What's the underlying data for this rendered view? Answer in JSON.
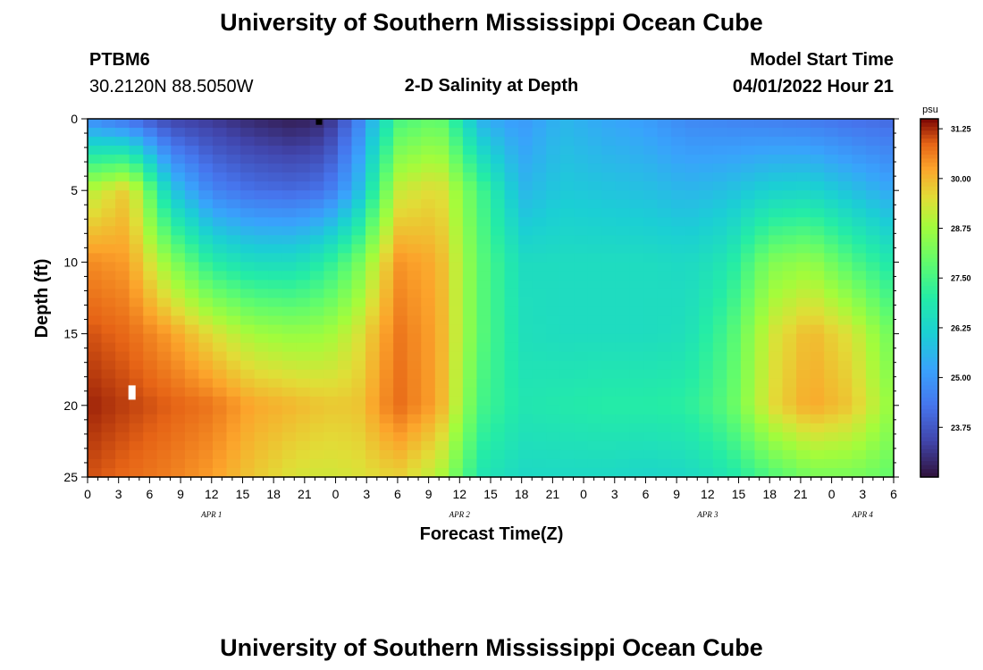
{
  "header": {
    "title": "University of Southern Mississippi Ocean Cube",
    "station_id": "PTBM6",
    "station_coords": "30.2120N  88.5050W",
    "subtitle": "2-D Salinity at Depth",
    "model_start_label": "Model Start Time",
    "model_start_value": "04/01/2022 Hour 21"
  },
  "footer": {
    "title": "University of Southern Mississippi Ocean Cube"
  },
  "chart_data": {
    "type": "heatmap",
    "title": "2-D Salinity at Depth",
    "xlabel": "Forecast Time(Z)",
    "ylabel": "Depth (ft)",
    "ylim": [
      0,
      25
    ],
    "y_ticks": [
      "0",
      "5",
      "10",
      "15",
      "20",
      "25"
    ],
    "x_tick_labels": [
      "0",
      "3",
      "6",
      "9",
      "12",
      "15",
      "18",
      "21",
      "0",
      "3",
      "6",
      "9",
      "12",
      "15",
      "18",
      "21",
      "0",
      "3",
      "6",
      "9",
      "12",
      "15",
      "18",
      "21",
      "0",
      "3",
      "6"
    ],
    "x_range_hours": [
      0,
      78
    ],
    "day_labels": [
      {
        "label": "APR 1",
        "hour": 12
      },
      {
        "label": "APR 2",
        "hour": 36
      },
      {
        "label": "APR 3",
        "hour": 60
      },
      {
        "label": "APR 4",
        "hour": 75
      }
    ],
    "colorbar": {
      "unit": "psu",
      "min": 22.5,
      "max": 31.5,
      "ticks": [
        "31.25",
        "30.00",
        "28.75",
        "27.50",
        "26.25",
        "25.00",
        "23.75"
      ]
    },
    "grid": {
      "hours": [
        0,
        4,
        8,
        12,
        16,
        20,
        23,
        26,
        30,
        34,
        38,
        42,
        46,
        50,
        54,
        58,
        62,
        66,
        70,
        74,
        78
      ],
      "depths": [
        0,
        5,
        10,
        15,
        20,
        25
      ],
      "values": [
        [
          24.8,
          24.2,
          23.4,
          23.2,
          22.9,
          22.7,
          22.9,
          24.4,
          27.5,
          28.0,
          25.5,
          25.0,
          25.6,
          25.3,
          25.1,
          24.7,
          24.6,
          24.5,
          24.4,
          24.2,
          24.1
        ],
        [
          29.0,
          29.8,
          26.0,
          24.6,
          24.2,
          24.1,
          24.3,
          25.5,
          29.2,
          29.6,
          27.5,
          25.6,
          26.0,
          25.9,
          25.8,
          25.6,
          25.8,
          26.2,
          26.3,
          25.8,
          25.3
        ],
        [
          30.5,
          30.3,
          28.5,
          27.0,
          26.5,
          26.5,
          27.0,
          28.0,
          30.4,
          30.1,
          27.8,
          26.5,
          26.5,
          26.5,
          26.5,
          26.4,
          26.8,
          28.3,
          28.6,
          27.6,
          26.8
        ],
        [
          31.0,
          30.8,
          30.3,
          29.5,
          28.8,
          28.6,
          28.7,
          29.3,
          30.7,
          30.2,
          27.8,
          26.6,
          26.5,
          26.5,
          26.5,
          26.6,
          27.5,
          29.3,
          30.0,
          29.4,
          28.0
        ],
        [
          31.3,
          31.1,
          30.9,
          30.7,
          30.2,
          30.0,
          29.8,
          29.8,
          30.8,
          30.2,
          27.5,
          26.8,
          26.9,
          27.0,
          27.0,
          27.1,
          27.8,
          29.5,
          30.2,
          29.8,
          28.5
        ],
        [
          31.0,
          30.8,
          30.6,
          30.3,
          29.8,
          29.4,
          29.3,
          29.4,
          29.7,
          29.0,
          26.8,
          26.4,
          26.4,
          26.4,
          26.3,
          26.4,
          26.8,
          27.6,
          28.2,
          28.2,
          27.9
        ]
      ]
    },
    "markers": [
      {
        "name": "missing-data-marker",
        "hour": 4.3,
        "depth": 19.1,
        "color": "#ffffff"
      },
      {
        "name": "surface-marker",
        "hour": 22.4,
        "depth": 0.2,
        "color": "#000000"
      }
    ]
  }
}
